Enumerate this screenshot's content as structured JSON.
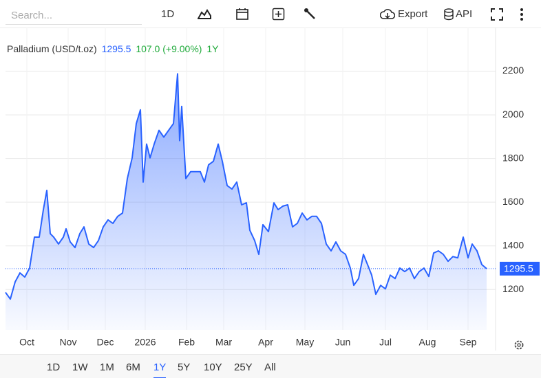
{
  "toolbar": {
    "search_placeholder": "Search...",
    "interval": "1D",
    "export": "Export",
    "api": "API"
  },
  "header": {
    "name": "Palladium (USD/t.oz)",
    "change": "107.0 (+9.00%)",
    "period": "1Y"
  },
  "ranges": [
    "1D",
    "1W",
    "1M",
    "6M",
    "1Y",
    "5Y",
    "10Y",
    "25Y",
    "All"
  ],
  "active_range": 4,
  "chart_data": {
    "type": "area",
    "x": [
      0,
      3.5,
      7,
      10.5,
      14,
      17.5,
      21,
      24.5,
      27.5,
      30,
      32.5,
      35,
      38.5,
      42,
      44,
      47,
      50.5,
      54,
      57,
      60.5,
      64,
      67.5,
      71,
      74.5,
      78,
      81.5,
      85,
      88.5,
      92,
      95,
      98,
      100,
      102.5,
      105,
      108,
      111.5,
      115,
      118.5,
      122,
      125,
      126.5,
      128,
      131,
      134.5,
      138,
      141.5,
      144.5,
      147.5,
      151,
      154.5,
      157.5,
      161,
      164.5,
      168,
      171.5,
      175,
      177.5,
      181,
      184,
      187,
      191,
      195,
      198,
      201.5,
      205,
      208.5,
      212,
      215.5,
      219,
      222.5,
      226,
      229.5,
      233,
      236.5,
      240,
      243.5,
      247,
      250.5,
      253,
      256.5,
      260,
      263,
      266,
      269,
      272.5,
      276,
      279.5,
      283,
      286.5,
      290,
      293.5,
      297,
      300.5,
      304,
      307.5,
      311,
      314.5,
      318,
      321.5,
      325,
      328.5,
      332.5,
      336,
      339,
      342.5,
      346,
      349.5
    ],
    "series": [
      {
        "name": "Palladium",
        "color": "#2962ff",
        "values": [
          1187,
          1156,
          1235,
          1276,
          1257,
          1298,
          1440,
          1440,
          1566,
          1654,
          1456,
          1440,
          1408,
          1440,
          1478,
          1418,
          1392,
          1456,
          1487,
          1408,
          1392,
          1424,
          1487,
          1519,
          1503,
          1535,
          1550,
          1708,
          1803,
          1960,
          2023,
          1692,
          1866,
          1803,
          1866,
          1929,
          1898,
          1929,
          1960,
          2188,
          1882,
          2039,
          1708,
          1740,
          1740,
          1740,
          1692,
          1771,
          1787,
          1866,
          1787,
          1676,
          1660,
          1692,
          1588,
          1597,
          1471,
          1424,
          1361,
          1497,
          1465,
          1597,
          1566,
          1582,
          1588,
          1487,
          1503,
          1550,
          1519,
          1535,
          1535,
          1503,
          1408,
          1377,
          1418,
          1377,
          1361,
          1298,
          1219,
          1250,
          1361,
          1314,
          1266,
          1178,
          1219,
          1203,
          1266,
          1250,
          1298,
          1282,
          1298,
          1250,
          1282,
          1298,
          1260,
          1367,
          1377,
          1361,
          1329,
          1351,
          1345,
          1440,
          1345,
          1408,
          1377,
          1314,
          1295.5
        ]
      }
    ],
    "last_price": 1295.5,
    "xlim": [
      0,
      350
    ],
    "xticks": [
      {
        "value": 15.5,
        "label": "Oct"
      },
      {
        "value": 45.5,
        "label": "Nov"
      },
      {
        "value": 72.5,
        "label": "Dec"
      },
      {
        "value": 101.5,
        "label": "2026"
      },
      {
        "value": 131.5,
        "label": "Feb"
      },
      {
        "value": 158.5,
        "label": "Mar"
      },
      {
        "value": 189,
        "label": "Apr"
      },
      {
        "value": 217.5,
        "label": "May"
      },
      {
        "value": 245,
        "label": "Jun"
      },
      {
        "value": 276,
        "label": "Jul"
      },
      {
        "value": 306.5,
        "label": "Aug"
      },
      {
        "value": 336,
        "label": "Sep"
      }
    ],
    "ylim": [
      1015,
      2400
    ],
    "yticks": [
      1200,
      1400,
      1600,
      1800,
      2000,
      2200
    ],
    "grid": true
  }
}
